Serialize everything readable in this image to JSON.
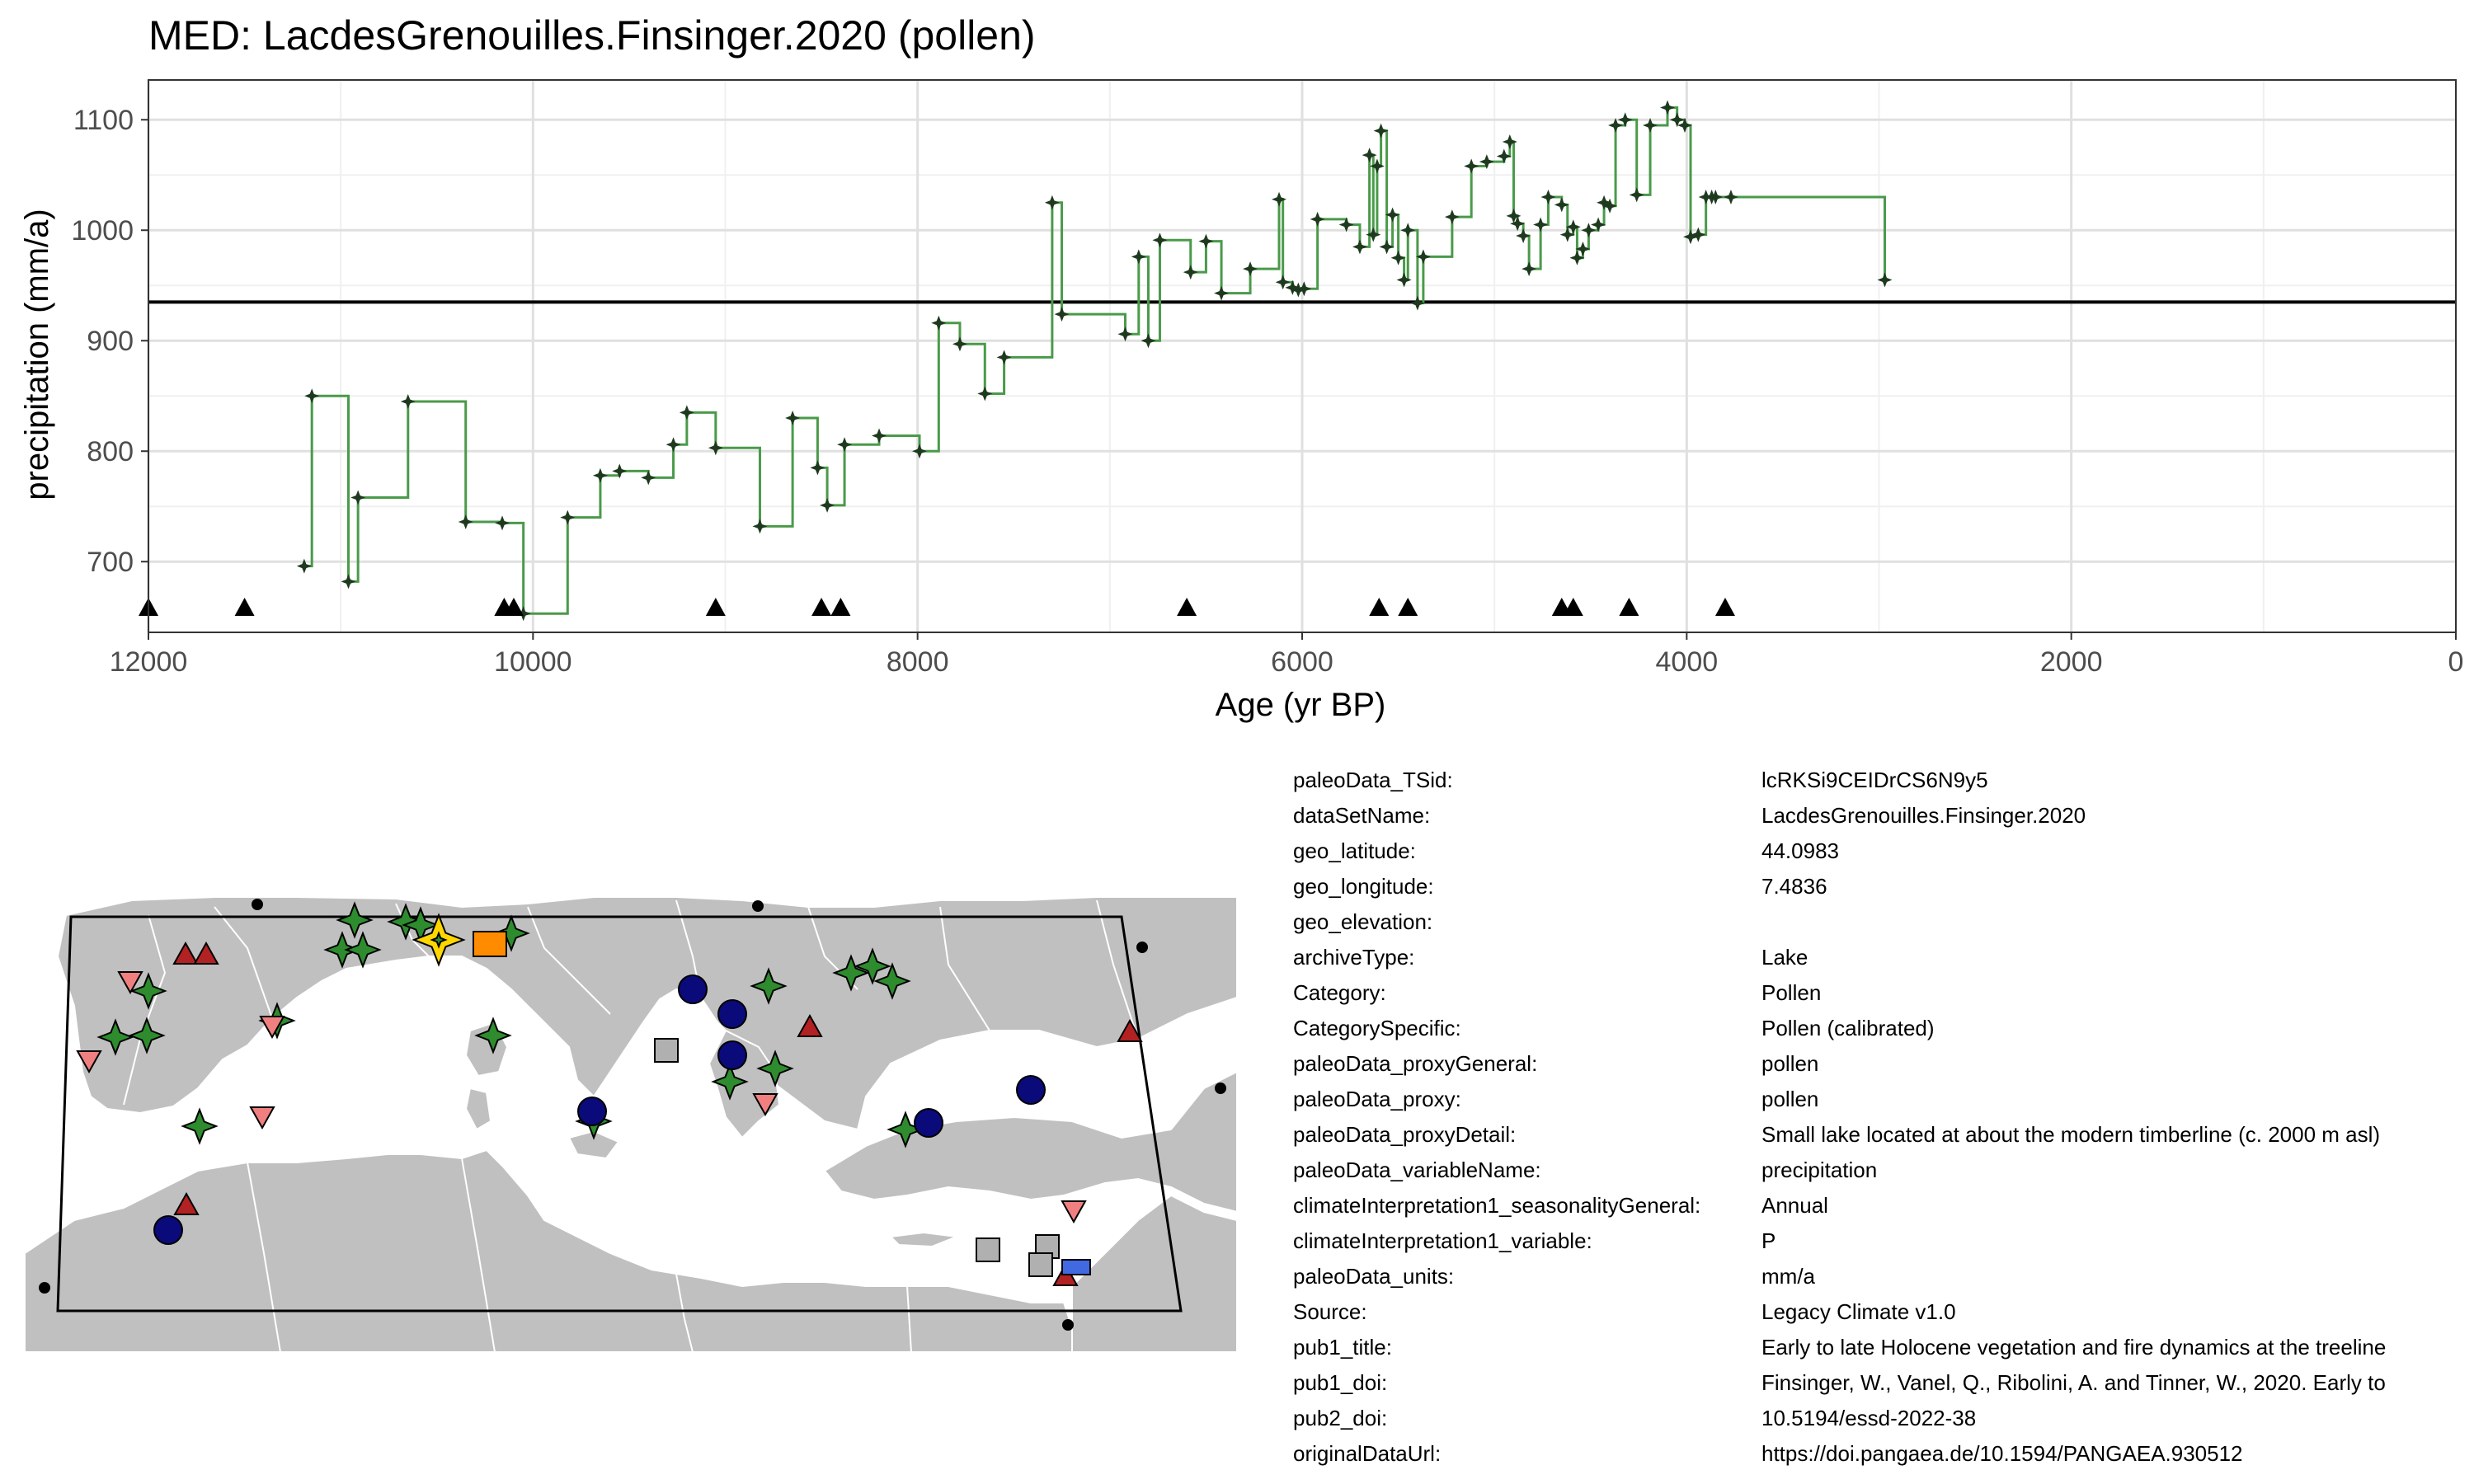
{
  "chart_data": {
    "type": "line",
    "title": "MED: LacdesGrenouilles.Finsinger.2020 (pollen)",
    "xlabel": "Age (yr BP)",
    "ylabel": "precipitation (mm/a)",
    "xlim": [
      12000,
      0
    ],
    "ylim": [
      636,
      1136
    ],
    "x_ticks": [
      12000,
      10000,
      8000,
      6000,
      4000,
      2000,
      0
    ],
    "y_ticks": [
      700,
      800,
      900,
      1000,
      1100
    ],
    "grid": true,
    "step": true,
    "reference_line": 935,
    "line_color": "#4a9a4a",
    "marker_color": "#1e3a1e",
    "series": [
      {
        "x": [
          11190,
          11150,
          10960,
          10910,
          10650,
          10350,
          10160,
          10050,
          9820,
          9650,
          9550,
          9400,
          9270,
          9200,
          9050,
          8820,
          8650,
          8520,
          8470,
          8380,
          8200,
          7990,
          7890,
          7780,
          7650,
          7550,
          7300,
          7250,
          6920,
          6850,
          6800,
          6740,
          6580,
          6500,
          6420,
          6270,
          6120,
          6100,
          6050,
          6020,
          5990,
          5920,
          5770,
          5700,
          5650,
          5630,
          5610,
          5590,
          5560,
          5530,
          5500,
          5470,
          5450,
          5400,
          5370,
          5220,
          5120,
          5040,
          4950,
          4920,
          4900,
          4880,
          4850,
          4820,
          4760,
          4720,
          4650,
          4620,
          4590,
          4570,
          4540,
          4510,
          4460,
          4430,
          4400,
          4370,
          4320,
          4260,
          4190,
          4100,
          4050,
          4010,
          3980,
          3940,
          3900,
          3870,
          3850,
          3770,
          2970
        ],
        "y": [
          696,
          850,
          682,
          758,
          845,
          736,
          735,
          653,
          740,
          778,
          782,
          776,
          806,
          835,
          803,
          732,
          830,
          785,
          751,
          806,
          814,
          800,
          916,
          897,
          852,
          885,
          1025,
          924,
          906,
          976,
          900,
          991,
          962,
          990,
          943,
          965,
          1028,
          953,
          948,
          946,
          947,
          1010,
          1005,
          985,
          1068,
          996,
          1058,
          1090,
          985,
          1014,
          975,
          955,
          1000,
          934,
          976,
          1012,
          1058,
          1062,
          1067,
          1080,
          1013,
          1006,
          995,
          965,
          1005,
          1030,
          1023,
          996,
          1003,
          975,
          983,
          1000,
          1005,
          1025,
          1022,
          1095,
          1100,
          1032,
          1095,
          1111,
          1100,
          1095,
          994,
          996,
          1030,
          1030,
          1030,
          1030,
          955
        ]
      }
    ],
    "triangle_markers_x": [
      12000,
      11500,
      10150,
      10100,
      9050,
      8500,
      8400,
      6600,
      5600,
      5450,
      4650,
      4590,
      4300,
      3800
    ]
  },
  "map": {
    "land_color": "#c0c0c0",
    "sea_color": "#ffffff",
    "selected_color": "#ffd700",
    "legend_colors": {
      "pollen": "#2e8b2e",
      "circle": "#0a0a7a",
      "triangle_up": "#b22222",
      "triangle_down": "#f08080",
      "square": "#b0b0b0",
      "orange": "#ff8c00",
      "blue_rect": "#4169e1"
    }
  },
  "metadata": [
    {
      "key": "paleoData_TSid:",
      "value": "lcRKSi9CEIDrCS6N9y5"
    },
    {
      "key": "dataSetName:",
      "value": "LacdesGrenouilles.Finsinger.2020"
    },
    {
      "key": "geo_latitude:",
      "value": "44.0983"
    },
    {
      "key": "geo_longitude:",
      "value": "7.4836"
    },
    {
      "key": "geo_elevation:",
      "value": ""
    },
    {
      "key": "archiveType:",
      "value": "Lake"
    },
    {
      "key": "Category:",
      "value": "Pollen"
    },
    {
      "key": "CategorySpecific:",
      "value": "Pollen (calibrated)"
    },
    {
      "key": "paleoData_proxyGeneral:",
      "value": "pollen"
    },
    {
      "key": "paleoData_proxy:",
      "value": "pollen"
    },
    {
      "key": "paleoData_proxyDetail:",
      "value": "Small lake located at about the modern timberline (c. 2000 m asl)"
    },
    {
      "key": "paleoData_variableName:",
      "value": "precipitation"
    },
    {
      "key": "climateInterpretation1_seasonalityGeneral:",
      "value": "Annual"
    },
    {
      "key": "climateInterpretation1_variable:",
      "value": "P"
    },
    {
      "key": "paleoData_units:",
      "value": "mm/a"
    },
    {
      "key": "Source:",
      "value": "Legacy Climate v1.0"
    },
    {
      "key": "pub1_title:",
      "value": "Early to late Holocene vegetation and fire dynamics at the treeline"
    },
    {
      "key": "pub1_doi:",
      "value": "Finsinger, W., Vanel, Q., Ribolini, A. and Tinner, W., 2020. Early to"
    },
    {
      "key": "pub2_doi:",
      "value": "10.5194/essd-2022-38"
    },
    {
      "key": "originalDataUrl:",
      "value": "https://doi.pangaea.de/10.1594/PANGAEA.930512"
    }
  ]
}
